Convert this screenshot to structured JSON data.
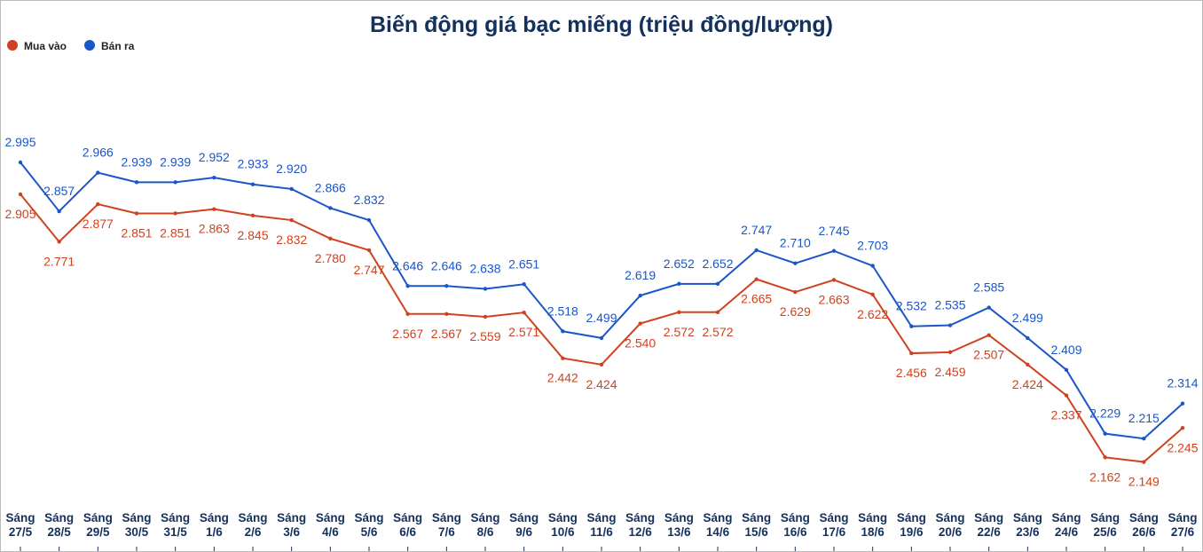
{
  "chart_data": {
    "type": "line",
    "title": "Biến động giá bạc miếng (triệu đồng/lượng)",
    "categories": [
      "Sáng 27/5",
      "Sáng 28/5",
      "Sáng 29/5",
      "Sáng 30/5",
      "Sáng 31/5",
      "Sáng 1/6",
      "Sáng 2/6",
      "Sáng 3/6",
      "Sáng 4/6",
      "Sáng 5/6",
      "Sáng 6/6",
      "Sáng 7/6",
      "Sáng 8/6",
      "Sáng 9/6",
      "Sáng 10/6",
      "Sáng 11/6",
      "Sáng 12/6",
      "Sáng 13/6",
      "Sáng 14/6",
      "Sáng 15/6",
      "Sáng 16/6",
      "Sáng 17/6",
      "Sáng 18/6",
      "Sáng 19/6",
      "Sáng 20/6",
      "Sáng 22/6",
      "Sáng 23/6",
      "Sáng 24/6",
      "Sáng 25/6",
      "Sáng 26/6",
      "Sáng 27/6"
    ],
    "legend": "top-left",
    "series": [
      {
        "name": "Mua vào",
        "color": "#d0421f",
        "values": [
          2.905,
          2.771,
          2.877,
          2.851,
          2.851,
          2.863,
          2.845,
          2.832,
          2.78,
          2.747,
          2.567,
          2.567,
          2.559,
          2.571,
          2.442,
          2.424,
          2.54,
          2.572,
          2.572,
          2.665,
          2.629,
          2.663,
          2.622,
          2.456,
          2.459,
          2.507,
          2.424,
          2.337,
          2.162,
          2.149,
          2.245
        ],
        "value_labels": [
          "2.905",
          "2.771",
          "2.877",
          "2.851",
          "2.851",
          "2.863",
          "2.845",
          "2.832",
          "2.780",
          "2.747",
          "2.567",
          "2.567",
          "2.559",
          "2.571",
          "2.442",
          "2.424",
          "2.540",
          "2.572",
          "2.572",
          "2.665",
          "2.629",
          "2.663",
          "2.622",
          "2.456",
          "2.459",
          "2.507",
          "2.424",
          "2.337",
          "2.162",
          "2.149",
          "2.245"
        ]
      },
      {
        "name": "Bán ra",
        "color": "#1a56c8",
        "values": [
          2.995,
          2.857,
          2.966,
          2.939,
          2.939,
          2.952,
          2.933,
          2.92,
          2.866,
          2.832,
          2.646,
          2.646,
          2.638,
          2.651,
          2.518,
          2.499,
          2.619,
          2.652,
          2.652,
          2.747,
          2.71,
          2.745,
          2.703,
          2.532,
          2.535,
          2.585,
          2.499,
          2.409,
          2.229,
          2.215,
          2.314
        ],
        "value_labels": [
          "2.995",
          "2.857",
          "2.966",
          "2.939",
          "2.939",
          "2.952",
          "2.933",
          "2.920",
          "2.866",
          "2.832",
          "2.646",
          "2.646",
          "2.638",
          "2.651",
          "2.518",
          "2.499",
          "2.619",
          "2.652",
          "2.652",
          "2.747",
          "2.710",
          "2.745",
          "2.703",
          "2.532",
          "2.535",
          "2.585",
          "2.499",
          "2.409",
          "2.229",
          "2.215",
          "2.314"
        ]
      }
    ]
  }
}
